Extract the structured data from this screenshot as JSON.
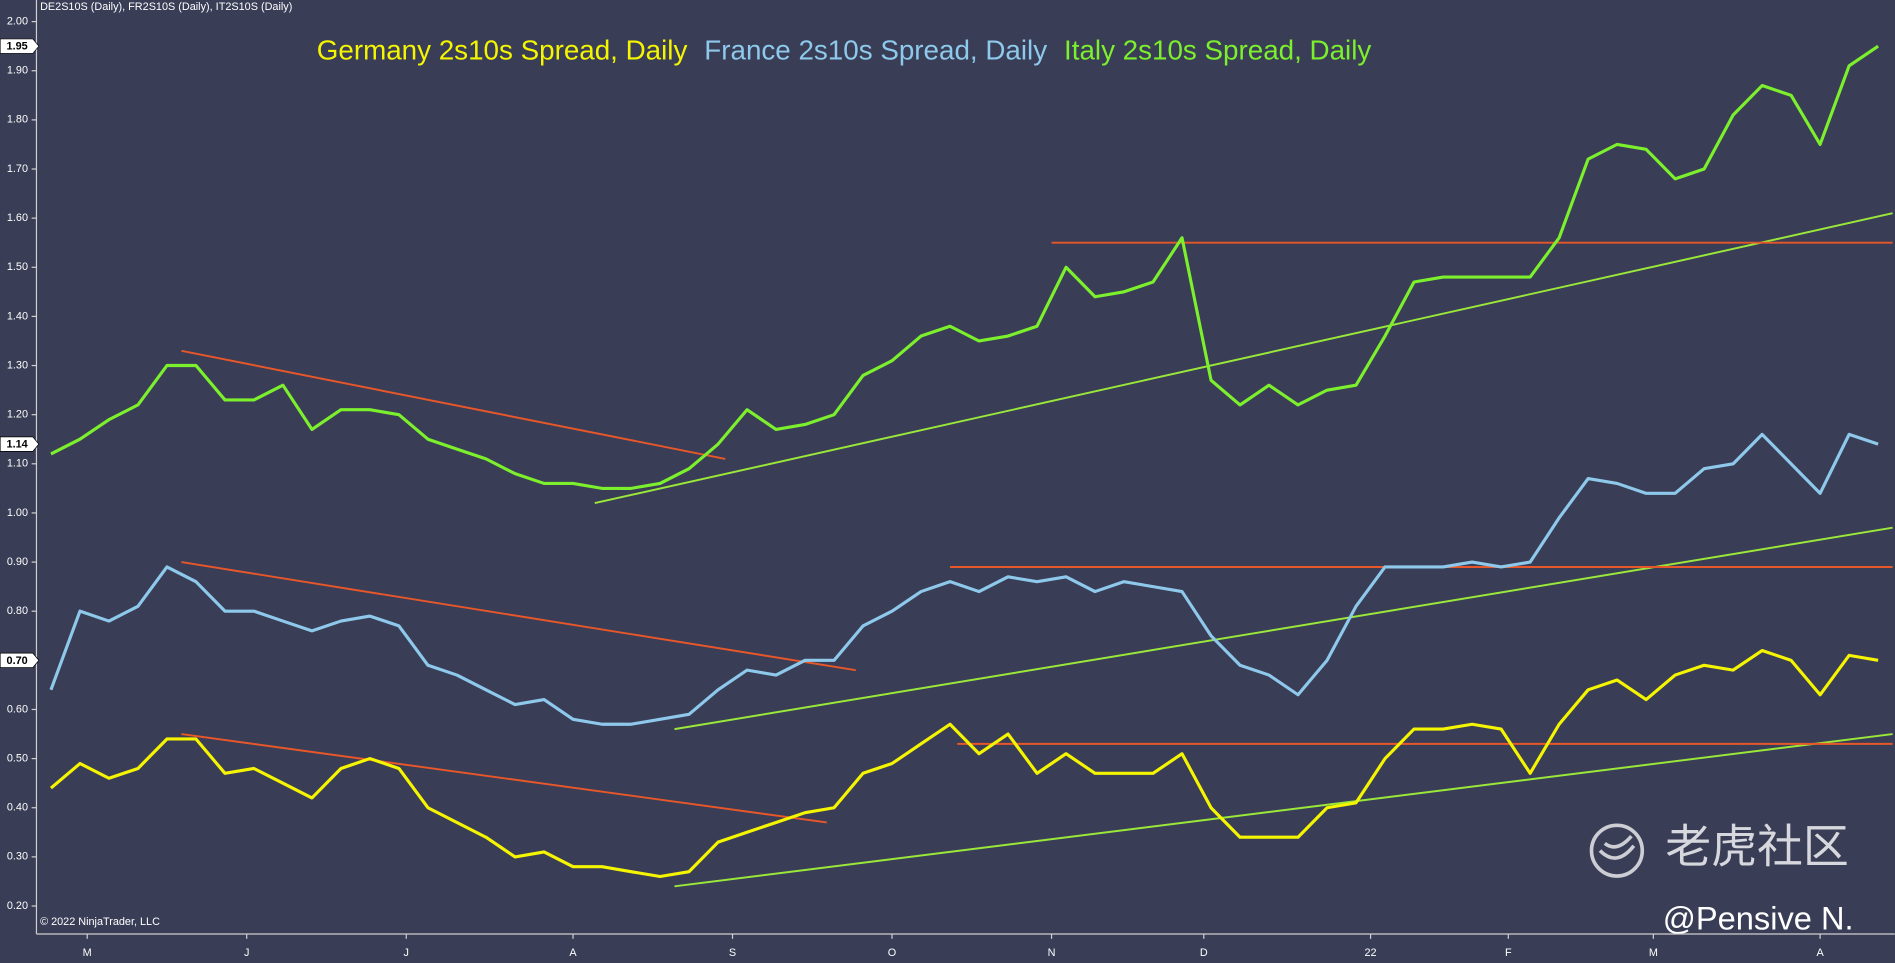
{
  "chart_data": {
    "type": "line",
    "header": "DE2S10S (Daily), FR2S10S (Daily), IT2S10S (Daily)",
    "copyright": "© 2022 NinjaTrader, LLC",
    "watermark": "老虎社区",
    "signature": "@Pensive N.",
    "x": [
      0,
      4,
      8,
      12,
      16,
      20,
      24,
      28,
      32,
      36,
      40,
      44,
      48,
      52,
      56,
      60,
      64,
      68,
      72,
      76,
      80,
      84,
      88,
      92,
      96,
      100,
      104,
      108,
      112,
      116,
      120,
      124,
      128,
      132,
      136,
      140,
      144,
      148,
      152,
      156,
      160,
      164,
      168,
      172,
      176,
      180,
      184,
      188,
      192,
      196,
      200,
      204,
      208,
      212,
      216,
      220,
      224,
      228,
      232,
      236,
      240,
      244,
      248,
      252
    ],
    "xlim": [
      -2,
      254.3
    ],
    "xticks": [
      {
        "value": 5,
        "label": "M"
      },
      {
        "value": 27,
        "label": "J"
      },
      {
        "value": 49,
        "label": "J"
      },
      {
        "value": 72,
        "label": "A"
      },
      {
        "value": 94,
        "label": "S"
      },
      {
        "value": 116,
        "label": "O"
      },
      {
        "value": 138,
        "label": "N"
      },
      {
        "value": 159,
        "label": "D"
      },
      {
        "value": 182,
        "label": "22"
      },
      {
        "value": 201,
        "label": "F"
      },
      {
        "value": 221,
        "label": "M"
      },
      {
        "value": 244,
        "label": "A"
      }
    ],
    "ylim": [
      0.143,
      2.044
    ],
    "yticks": [
      {
        "value": 0.2,
        "label": "0.20"
      },
      {
        "value": 0.3,
        "label": "0.30"
      },
      {
        "value": 0.4,
        "label": "0.40"
      },
      {
        "value": 0.5,
        "label": "0.50"
      },
      {
        "value": 0.6,
        "label": "0.60"
      },
      {
        "value": 0.7,
        "label": "0.70"
      },
      {
        "value": 0.8,
        "label": "0.80"
      },
      {
        "value": 0.9,
        "label": "0.90"
      },
      {
        "value": 1.0,
        "label": "1.00"
      },
      {
        "value": 1.1,
        "label": "1.10"
      },
      {
        "value": 1.2,
        "label": "1.20"
      },
      {
        "value": 1.3,
        "label": "1.30"
      },
      {
        "value": 1.4,
        "label": "1.40"
      },
      {
        "value": 1.5,
        "label": "1.50"
      },
      {
        "value": 1.6,
        "label": "1.60"
      },
      {
        "value": 1.7,
        "label": "1.70"
      },
      {
        "value": 1.8,
        "label": "1.80"
      },
      {
        "value": 1.9,
        "label": "1.90"
      },
      {
        "value": 2.0,
        "label": "2.00"
      }
    ],
    "grid": false,
    "series": [
      {
        "name": "Germany 2s10s Spread, Daily",
        "color": "#f5f500",
        "last_label": "0.70",
        "values": [
          0.44,
          0.49,
          0.46,
          0.48,
          0.54,
          0.54,
          0.47,
          0.48,
          0.45,
          0.42,
          0.48,
          0.5,
          0.48,
          0.4,
          0.37,
          0.34,
          0.3,
          0.31,
          0.28,
          0.28,
          0.27,
          0.26,
          0.27,
          0.33,
          0.35,
          0.37,
          0.39,
          0.4,
          0.47,
          0.49,
          0.53,
          0.57,
          0.51,
          0.55,
          0.47,
          0.51,
          0.47,
          0.47,
          0.47,
          0.51,
          0.4,
          0.34,
          0.34,
          0.34,
          0.4,
          0.41,
          0.5,
          0.56,
          0.56,
          0.57,
          0.56,
          0.47,
          0.57,
          0.64,
          0.66,
          0.62,
          0.67,
          0.69,
          0.68,
          0.72,
          0.7,
          0.63,
          0.71,
          0.7
        ]
      },
      {
        "name": "France 2s10s Spread, Daily",
        "color": "#8ec9ec",
        "last_label": "1.14",
        "values": [
          0.64,
          0.8,
          0.78,
          0.81,
          0.89,
          0.86,
          0.8,
          0.8,
          0.78,
          0.76,
          0.78,
          0.79,
          0.77,
          0.69,
          0.67,
          0.64,
          0.61,
          0.62,
          0.58,
          0.57,
          0.57,
          0.58,
          0.59,
          0.64,
          0.68,
          0.67,
          0.7,
          0.7,
          0.77,
          0.8,
          0.84,
          0.86,
          0.84,
          0.87,
          0.86,
          0.87,
          0.84,
          0.86,
          0.85,
          0.84,
          0.75,
          0.69,
          0.67,
          0.63,
          0.7,
          0.81,
          0.89,
          0.89,
          0.89,
          0.9,
          0.89,
          0.9,
          0.99,
          1.07,
          1.06,
          1.04,
          1.04,
          1.09,
          1.1,
          1.16,
          1.1,
          1.04,
          1.16,
          1.14
        ]
      },
      {
        "name": "Italy 2s10s Spread, Daily",
        "color": "#7cf02c",
        "last_label": "1.95",
        "values": [
          1.12,
          1.15,
          1.19,
          1.22,
          1.3,
          1.3,
          1.23,
          1.23,
          1.26,
          1.17,
          1.21,
          1.21,
          1.2,
          1.15,
          1.13,
          1.11,
          1.08,
          1.06,
          1.06,
          1.05,
          1.05,
          1.06,
          1.09,
          1.14,
          1.21,
          1.17,
          1.18,
          1.2,
          1.28,
          1.31,
          1.36,
          1.38,
          1.35,
          1.36,
          1.38,
          1.5,
          1.44,
          1.45,
          1.47,
          1.56,
          1.27,
          1.22,
          1.26,
          1.22,
          1.25,
          1.26,
          1.36,
          1.47,
          1.48,
          1.48,
          1.48,
          1.48,
          1.56,
          1.72,
          1.75,
          1.74,
          1.68,
          1.7,
          1.81,
          1.87,
          1.85,
          1.75,
          1.91,
          1.95
        ]
      }
    ],
    "trendlines": [
      {
        "color": "#e8572a",
        "x": [
          18,
          93
        ],
        "y": [
          1.33,
          1.11
        ]
      },
      {
        "color": "#9ae83a",
        "x": [
          75,
          254
        ],
        "y": [
          1.02,
          1.61
        ]
      },
      {
        "color": "#e8572a",
        "x": [
          138,
          254
        ],
        "y": [
          1.55,
          1.55
        ]
      },
      {
        "color": "#e8572a",
        "x": [
          18,
          111
        ],
        "y": [
          0.9,
          0.68
        ]
      },
      {
        "color": "#9ae83a",
        "x": [
          86,
          254
        ],
        "y": [
          0.56,
          0.97
        ]
      },
      {
        "color": "#e8572a",
        "x": [
          124,
          254
        ],
        "y": [
          0.89,
          0.89
        ]
      },
      {
        "color": "#e8572a",
        "x": [
          18,
          107
        ],
        "y": [
          0.55,
          0.37
        ]
      },
      {
        "color": "#9ae83a",
        "x": [
          86,
          254
        ],
        "y": [
          0.24,
          0.55
        ]
      },
      {
        "color": "#e8572a",
        "x": [
          125,
          254
        ],
        "y": [
          0.53,
          0.53
        ]
      }
    ]
  }
}
